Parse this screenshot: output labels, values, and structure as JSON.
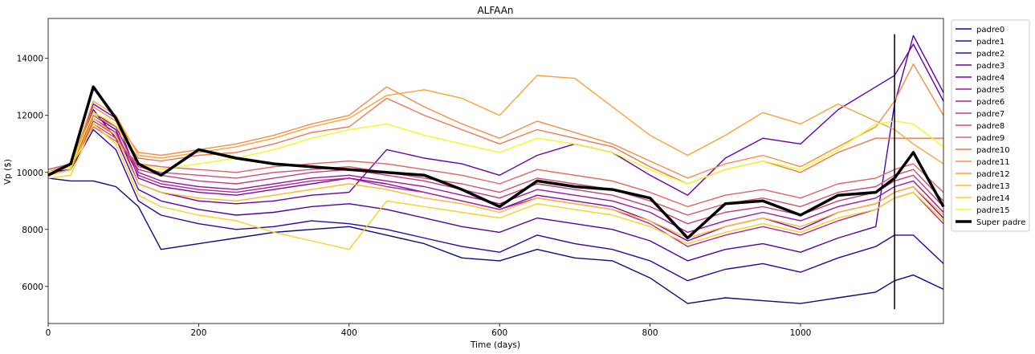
{
  "chart_data": {
    "type": "line",
    "title": "ALFAAn",
    "xlabel": "Time (days)",
    "ylabel": "Vp ($)",
    "xlim": [
      0,
      1190
    ],
    "ylim": [
      4700,
      15400
    ],
    "xticks": [
      0,
      200,
      400,
      600,
      800,
      1000
    ],
    "yticks": [
      6000,
      8000,
      10000,
      12000,
      14000
    ],
    "grid": false,
    "legend_position": "outside-right",
    "vline": {
      "x": 1125,
      "ymin": 5200,
      "ymax": 14850,
      "color": "#000000"
    },
    "x": [
      0,
      30,
      60,
      90,
      120,
      150,
      200,
      250,
      300,
      350,
      400,
      450,
      500,
      550,
      600,
      650,
      700,
      750,
      800,
      850,
      900,
      950,
      1000,
      1050,
      1100,
      1125,
      1150,
      1190
    ],
    "series": [
      {
        "name": "padre0",
        "color": "#0d0887",
        "values": [
          9800,
          9700,
          9700,
          9500,
          8800,
          7300,
          7500,
          7700,
          7900,
          8000,
          8100,
          7800,
          7500,
          7000,
          6900,
          7300,
          7000,
          6900,
          6300,
          5400,
          5600,
          5500,
          5400,
          5600,
          5800,
          6200,
          6400,
          5900
        ]
      },
      {
        "name": "padre1",
        "color": "#3303a0",
        "values": [
          10000,
          10100,
          11500,
          10800,
          9000,
          8500,
          8200,
          8000,
          8100,
          8300,
          8200,
          8000,
          7700,
          7400,
          7200,
          7800,
          7500,
          7300,
          6900,
          6200,
          6600,
          6800,
          6500,
          7000,
          7400,
          7800,
          7800,
          6800
        ]
      },
      {
        "name": "padre2",
        "color": "#5302a3",
        "values": [
          10100,
          10300,
          12200,
          11200,
          9400,
          9000,
          8700,
          8500,
          8600,
          8800,
          8900,
          8700,
          8400,
          8100,
          7900,
          8400,
          8200,
          8000,
          7600,
          6900,
          7300,
          7500,
          7200,
          7700,
          8100,
          12400,
          14800,
          12800
        ]
      },
      {
        "name": "padre3",
        "color": "#6a00a8",
        "values": [
          10000,
          10200,
          12000,
          11500,
          9600,
          9300,
          9000,
          8900,
          9000,
          9200,
          9300,
          10800,
          10500,
          10300,
          9900,
          10600,
          11000,
          10700,
          9900,
          9200,
          10500,
          11200,
          11000,
          12200,
          13000,
          13400,
          14500,
          12500
        ]
      },
      {
        "name": "padre4",
        "color": "#8405a7",
        "values": [
          10000,
          10200,
          12400,
          11900,
          9800,
          9500,
          9300,
          9200,
          9400,
          9600,
          9800,
          9600,
          9300,
          9000,
          8700,
          9200,
          9000,
          8800,
          8300,
          7600,
          8100,
          8400,
          8000,
          8600,
          8900,
          9300,
          9500,
          8400
        ]
      },
      {
        "name": "padre5",
        "color": "#9c179e",
        "values": [
          10000,
          10300,
          12100,
          11600,
          10000,
          9700,
          9500,
          9400,
          9600,
          9800,
          9900,
          9700,
          9500,
          9200,
          8900,
          9400,
          9200,
          9000,
          8600,
          7900,
          8300,
          8600,
          8300,
          8800,
          9100,
          9500,
          9700,
          8600
        ]
      },
      {
        "name": "padre6",
        "color": "#b12a90",
        "values": [
          9900,
          10100,
          11900,
          11400,
          9900,
          9600,
          9400,
          9300,
          9500,
          9700,
          9800,
          9500,
          9300,
          9000,
          8700,
          9100,
          8900,
          8700,
          8200,
          7400,
          7800,
          8100,
          7800,
          8300,
          8700,
          9100,
          9300,
          8200
        ]
      },
      {
        "name": "padre7",
        "color": "#c33d80",
        "values": [
          10000,
          10200,
          11800,
          11300,
          10100,
          9900,
          9700,
          9600,
          9800,
          10000,
          10100,
          9900,
          9700,
          9400,
          9100,
          9600,
          9400,
          9200,
          8800,
          8200,
          8600,
          8800,
          8500,
          9000,
          9300,
          9700,
          9900,
          8800
        ]
      },
      {
        "name": "padre8",
        "color": "#d24f71",
        "values": [
          10000,
          10200,
          11700,
          11200,
          10200,
          10000,
          9900,
          9800,
          10000,
          10100,
          10200,
          10000,
          9800,
          9600,
          9300,
          9800,
          9600,
          9400,
          9000,
          8500,
          8900,
          9100,
          8800,
          9300,
          9500,
          9900,
          10100,
          9000
        ]
      },
      {
        "name": "padre9",
        "color": "#e16462",
        "values": [
          10100,
          10300,
          11600,
          11100,
          10300,
          10200,
          10100,
          10000,
          10200,
          10300,
          10400,
          10300,
          10100,
          9900,
          9600,
          10100,
          9900,
          9700,
          9300,
          8800,
          9200,
          9400,
          9100,
          9600,
          9800,
          10100,
          10300,
          9300
        ]
      },
      {
        "name": "padre10",
        "color": "#ec7853",
        "values": [
          10000,
          10300,
          12000,
          11600,
          10500,
          10400,
          10600,
          10700,
          11000,
          11400,
          11600,
          12600,
          12000,
          11500,
          11000,
          11500,
          11200,
          10900,
          10200,
          9600,
          10100,
          10400,
          10000,
          10700,
          11200,
          11200,
          11200,
          11200
        ]
      },
      {
        "name": "padre11",
        "color": "#f58c46",
        "values": [
          10000,
          10200,
          12300,
          11800,
          10700,
          10600,
          10800,
          11000,
          11300,
          11700,
          12000,
          13000,
          12300,
          11700,
          11200,
          11800,
          11400,
          11000,
          10400,
          9800,
          10300,
          10600,
          10200,
          10900,
          11600,
          12500,
          13800,
          12000
        ]
      },
      {
        "name": "padre12",
        "color": "#fba238",
        "values": [
          10000,
          10200,
          12500,
          12000,
          10600,
          10500,
          10700,
          10900,
          11200,
          11600,
          11900,
          12700,
          12900,
          12600,
          12000,
          13400,
          13300,
          12300,
          11300,
          10600,
          11300,
          12100,
          11700,
          12400,
          11800,
          11500,
          11000,
          10300
        ]
      },
      {
        "name": "padre13",
        "color": "#feb82c",
        "values": [
          9900,
          10100,
          11900,
          11300,
          9600,
          9300,
          9100,
          9000,
          9200,
          9400,
          9600,
          9400,
          9100,
          8900,
          8600,
          9100,
          8900,
          8700,
          8300,
          7700,
          8100,
          8400,
          8100,
          8600,
          8900,
          9300,
          9500,
          8500
        ]
      },
      {
        "name": "padre14",
        "color": "#f9d124",
        "values": [
          9800,
          9900,
          11700,
          11000,
          9200,
          8800,
          8500,
          8300,
          7900,
          7600,
          7300,
          9000,
          8800,
          8600,
          8400,
          8900,
          8700,
          8500,
          8100,
          7500,
          7900,
          8200,
          7900,
          8400,
          8700,
          9100,
          9300,
          8300
        ]
      },
      {
        "name": "padre15",
        "color": "#f0f921",
        "values": [
          10000,
          10200,
          12100,
          11700,
          10300,
          10100,
          10300,
          10500,
          10800,
          11200,
          11500,
          11700,
          11300,
          11000,
          10700,
          11200,
          11000,
          10700,
          10100,
          9600,
          10100,
          10400,
          10100,
          10800,
          11700,
          11800,
          11700,
          10900
        ]
      },
      {
        "name": "Super padre",
        "color": "#000000",
        "values": [
          9900,
          10300,
          13000,
          11900,
          10300,
          9900,
          10800,
          10500,
          10300,
          10200,
          10100,
          10000,
          9900,
          9400,
          8800,
          9700,
          9500,
          9400,
          9100,
          7700,
          8900,
          9000,
          8500,
          9200,
          9300,
          9800,
          10700,
          8800
        ]
      }
    ]
  }
}
